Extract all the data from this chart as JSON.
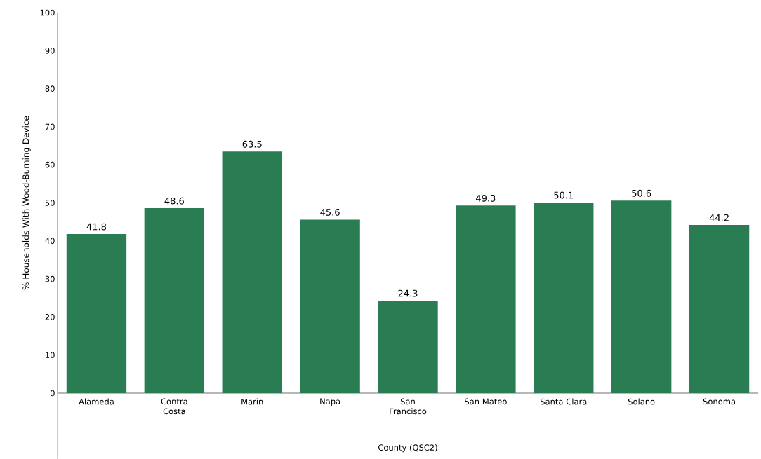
{
  "chart_data": {
    "type": "bar",
    "xlabel": "County (QSC2)",
    "ylabel": "% Households With Wood-Burning Device",
    "categories": [
      "Alameda",
      "Contra Costa",
      "Marin",
      "Napa",
      "San Francisco",
      "San Mateo",
      "Santa Clara",
      "Solano",
      "Sonoma"
    ],
    "values": [
      41.8,
      48.6,
      63.5,
      45.6,
      24.3,
      49.3,
      50.1,
      50.6,
      44.2
    ],
    "color": "#2a7d53",
    "ylim": [
      0,
      100
    ],
    "yticks": [
      0,
      10,
      20,
      30,
      40,
      50,
      60,
      70,
      80,
      90,
      100
    ],
    "data_labels": true
  }
}
